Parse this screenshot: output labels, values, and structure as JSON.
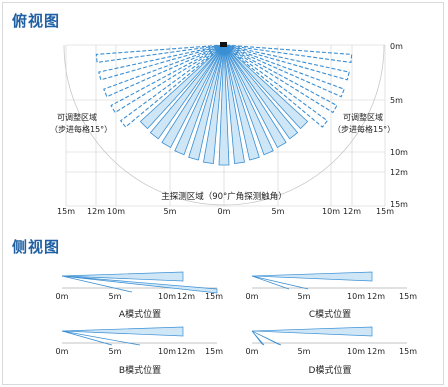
{
  "top_view": {
    "title": "俯视图",
    "dist_labels": [
      "0m",
      "5m",
      "10m",
      "12m",
      "15m"
    ],
    "left_zone": [
      "可调整区域",
      "（步进每格15°）"
    ],
    "right_zone": [
      "可调整区域",
      "（步进每格15°）"
    ],
    "main_zone": "主探测区域（90°广角探测触角）",
    "bottom_labels": [
      "15m",
      "12m",
      "10m",
      "5m",
      "0m",
      "5m",
      "10m",
      "12m",
      "15m"
    ]
  },
  "side_view": {
    "title": "侧视图",
    "panels": [
      {
        "caption": "A模式位置",
        "axis": [
          "0m",
          "5m",
          "10m",
          "12m",
          "15m"
        ]
      },
      {
        "caption": "C模式位置",
        "axis": [
          "0m",
          "5m",
          "10m",
          "12m",
          "15m"
        ]
      },
      {
        "caption": "B模式位置",
        "axis": [
          "0m",
          "5m",
          "10m",
          "12m",
          "15m"
        ]
      },
      {
        "caption": "D模式位置",
        "axis": [
          "0m",
          "5m",
          "10m",
          "12m",
          "15m"
        ]
      }
    ]
  },
  "colors": {
    "title": "#1f5fa3",
    "beam_fill": "#cfe6f7",
    "beam_stroke": "#3a8fd4",
    "grid": "#d0d0d0"
  }
}
